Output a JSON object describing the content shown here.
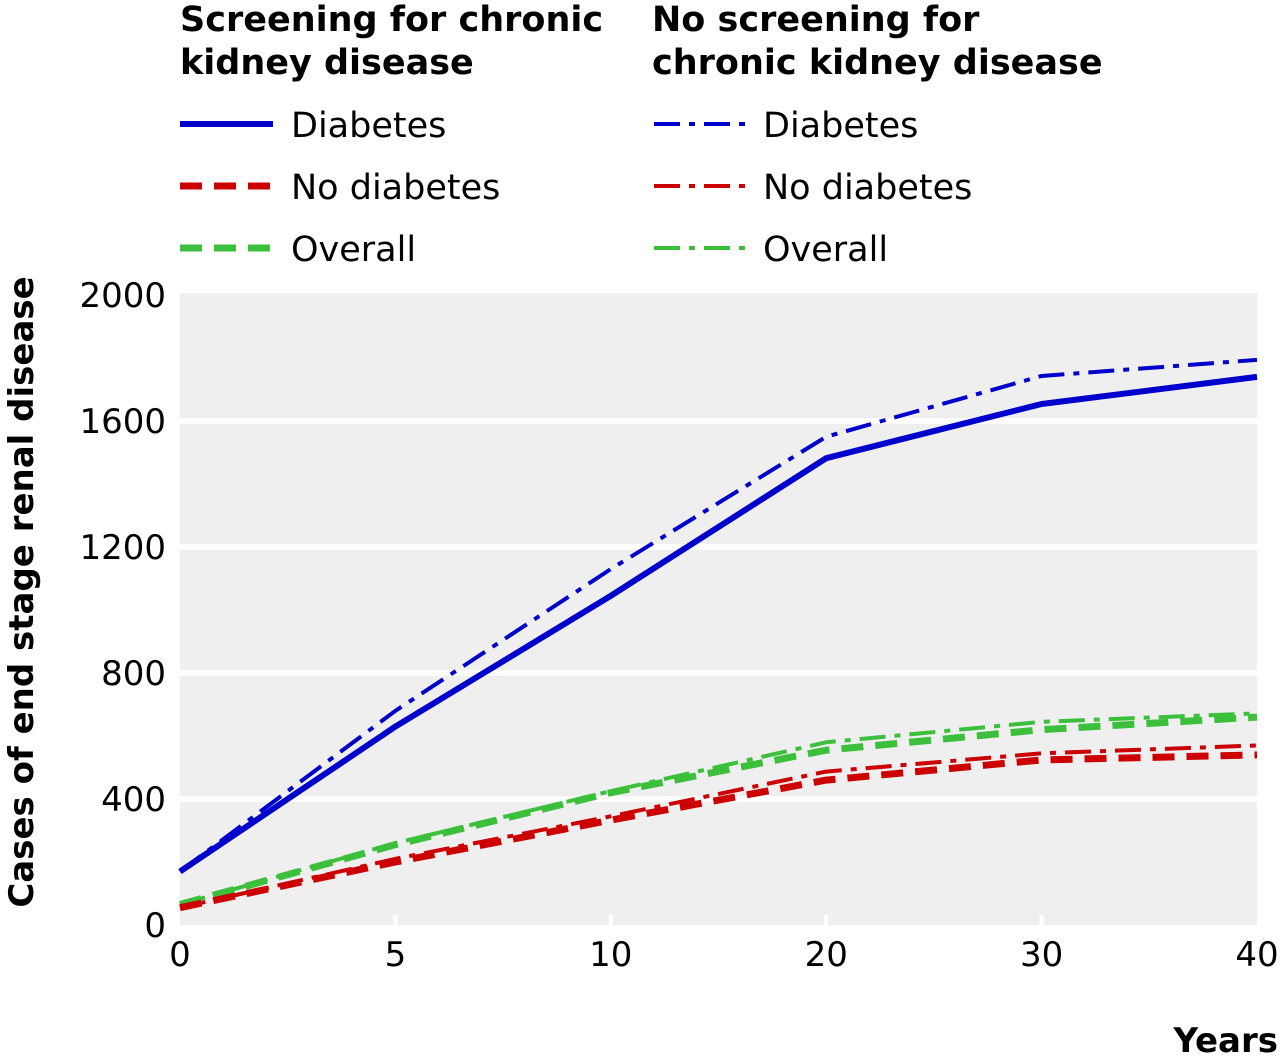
{
  "chart_data": {
    "type": "line",
    "title": "",
    "xlabel": "Years",
    "ylabel": "Cases of end stage renal disease",
    "categories": [
      "0",
      "5",
      "10",
      "20",
      "30",
      "40"
    ],
    "ylim": [
      0,
      2000
    ],
    "yticks": [
      "0",
      "400",
      "800",
      "1200",
      "1600",
      "2000"
    ],
    "grid": "horizontal",
    "legend_position": "top",
    "legend_groups": [
      {
        "title": [
          "Screening for chronic",
          "kidney disease"
        ]
      },
      {
        "title": [
          "No screening for",
          "chronic kidney disease"
        ]
      }
    ],
    "series": [
      {
        "name": "Diabetes",
        "group": 0,
        "color": "#0000cc",
        "style": "solid",
        "values": [
          170,
          630,
          1045,
          1482,
          1654,
          1740
        ]
      },
      {
        "name": "No diabetes",
        "group": 0,
        "color": "#cc0000",
        "style": "dashed",
        "values": [
          55,
          200,
          333,
          460,
          524,
          540
        ]
      },
      {
        "name": "Overall",
        "group": 0,
        "color": "#3cc03c",
        "style": "dashed",
        "values": [
          65,
          255,
          420,
          555,
          620,
          660
        ]
      },
      {
        "name": "Diabetes",
        "group": 1,
        "color": "#0000cc",
        "style": "dashdot",
        "values": [
          170,
          680,
          1130,
          1550,
          1743,
          1794
        ]
      },
      {
        "name": "No diabetes",
        "group": 1,
        "color": "#cc0000",
        "style": "dashdot",
        "values": [
          55,
          210,
          345,
          487,
          545,
          570
        ]
      },
      {
        "name": "Overall",
        "group": 1,
        "color": "#3cc03c",
        "style": "dashdot",
        "values": [
          65,
          260,
          425,
          580,
          645,
          672
        ]
      }
    ]
  }
}
